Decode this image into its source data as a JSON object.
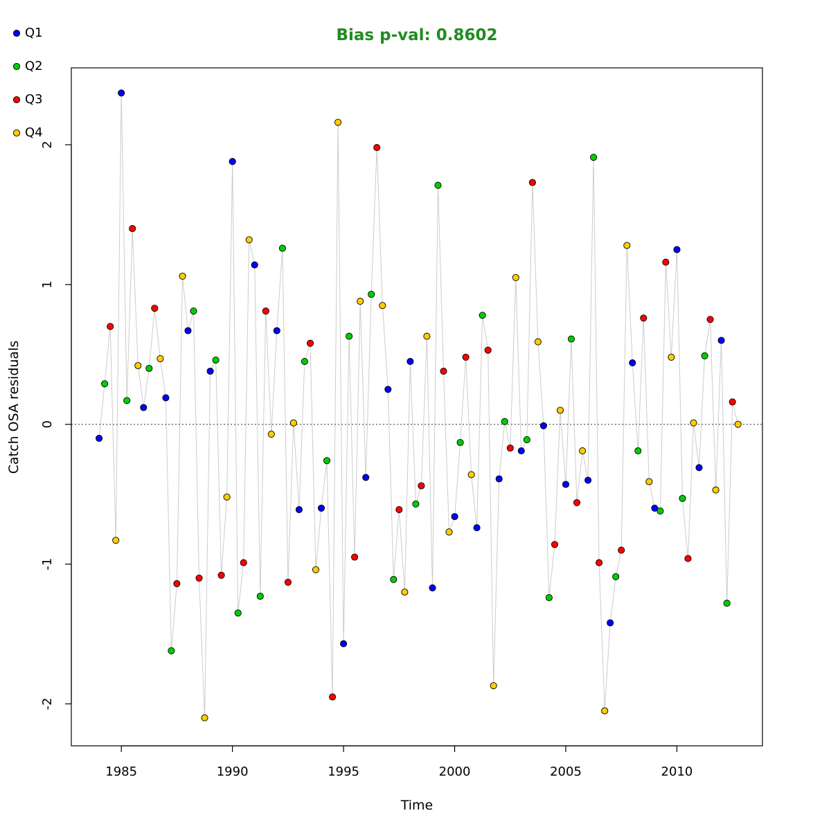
{
  "colors": {
    "title": "#228B22",
    "Q1": "#0000FF",
    "Q2": "#00CD00",
    "Q3": "#FF0000",
    "Q4": "#FFCC00",
    "connector": "#cccccc",
    "zero_line": "#555555"
  },
  "chart_data": {
    "type": "scatter",
    "title": "Bias p-val: 0.8602",
    "xlabel": "Time",
    "ylabel": "Catch OSA residuals",
    "xlim": [
      1982.75,
      2013.85
    ],
    "ylim": [
      -2.3,
      2.55
    ],
    "xticks": [
      1985,
      1990,
      1995,
      2000,
      2005,
      2010
    ],
    "yticks": [
      -2,
      -1,
      0,
      1,
      2
    ],
    "reference_line": 0,
    "grid": false,
    "legend_position": "top-left",
    "legend": [
      "Q1",
      "Q2",
      "Q3",
      "Q4"
    ],
    "series": [
      {
        "name": "Q1",
        "x": [
          1984,
          1985,
          1986,
          1987,
          1988,
          1989,
          1990,
          1991,
          1992,
          1993,
          1994,
          1995,
          1996,
          1997,
          1998,
          1999,
          2000,
          2001,
          2002,
          2003,
          2004,
          2005,
          2006,
          2007,
          2008,
          2009,
          2010,
          2011,
          2012
        ],
        "y": [
          -0.1,
          2.37,
          0.12,
          0.19,
          0.67,
          0.38,
          1.88,
          1.14,
          0.67,
          -0.61,
          -0.6,
          -1.57,
          -0.38,
          0.25,
          0.45,
          -1.17,
          -0.66,
          -0.74,
          -0.39,
          -0.19,
          -0.01,
          -0.43,
          -0.4,
          -1.42,
          0.44,
          -0.6,
          1.25,
          -0.31,
          0.6
        ]
      },
      {
        "name": "Q2",
        "x": [
          1984.25,
          1985.25,
          1986.25,
          1987.25,
          1988.25,
          1989.25,
          1990.25,
          1991.25,
          1992.25,
          1993.25,
          1994.25,
          1995.25,
          1996.25,
          1997.25,
          1998.25,
          1999.25,
          2000.25,
          2001.25,
          2002.25,
          2003.25,
          2004.25,
          2005.25,
          2006.25,
          2007.25,
          2008.25,
          2009.25,
          2010.25,
          2011.25,
          2012.25
        ],
        "y": [
          0.29,
          0.17,
          0.4,
          -1.62,
          0.81,
          0.46,
          -1.35,
          -1.23,
          1.26,
          0.45,
          -0.26,
          0.63,
          0.93,
          -1.11,
          -0.57,
          1.71,
          -0.13,
          0.78,
          0.02,
          -0.11,
          -1.24,
          0.61,
          1.91,
          -1.09,
          -0.19,
          -0.62,
          -0.53,
          0.49,
          -1.28
        ]
      },
      {
        "name": "Q3",
        "x": [
          1984.5,
          1985.5,
          1986.5,
          1987.5,
          1988.5,
          1989.5,
          1990.5,
          1991.5,
          1992.5,
          1993.5,
          1994.5,
          1995.5,
          1996.5,
          1997.5,
          1998.5,
          1999.5,
          2000.5,
          2001.5,
          2002.5,
          2003.5,
          2004.5,
          2005.5,
          2006.5,
          2007.5,
          2008.5,
          2009.5,
          2010.5,
          2011.5,
          2012.5
        ],
        "y": [
          0.7,
          1.4,
          0.83,
          -1.14,
          -1.1,
          -1.08,
          -0.99,
          0.81,
          -1.13,
          0.58,
          -1.95,
          -0.95,
          1.98,
          -0.61,
          -0.44,
          0.38,
          0.48,
          0.53,
          -0.17,
          1.73,
          -0.86,
          -0.56,
          -0.99,
          -0.9,
          0.76,
          1.16,
          -0.96,
          0.75,
          0.16
        ]
      },
      {
        "name": "Q4",
        "x": [
          1984.75,
          1985.75,
          1986.75,
          1987.75,
          1988.75,
          1989.75,
          1990.75,
          1991.75,
          1992.75,
          1993.75,
          1994.75,
          1995.75,
          1996.75,
          1997.75,
          1998.75,
          1999.75,
          2000.75,
          2001.75,
          2002.75,
          2003.75,
          2004.75,
          2005.75,
          2006.75,
          2007.75,
          2008.75,
          2009.75,
          2010.75,
          2011.75,
          2012.75
        ],
        "y": [
          -0.83,
          0.42,
          0.47,
          1.06,
          -2.1,
          -0.52,
          1.32,
          -0.07,
          0.01,
          -1.04,
          2.16,
          0.88,
          0.85,
          -1.2,
          0.63,
          -0.77,
          -0.36,
          -1.87,
          1.05,
          0.59,
          0.1,
          -0.19,
          -2.05,
          1.28,
          -0.41,
          0.48,
          0.01,
          -0.47,
          0.0
        ]
      }
    ]
  }
}
